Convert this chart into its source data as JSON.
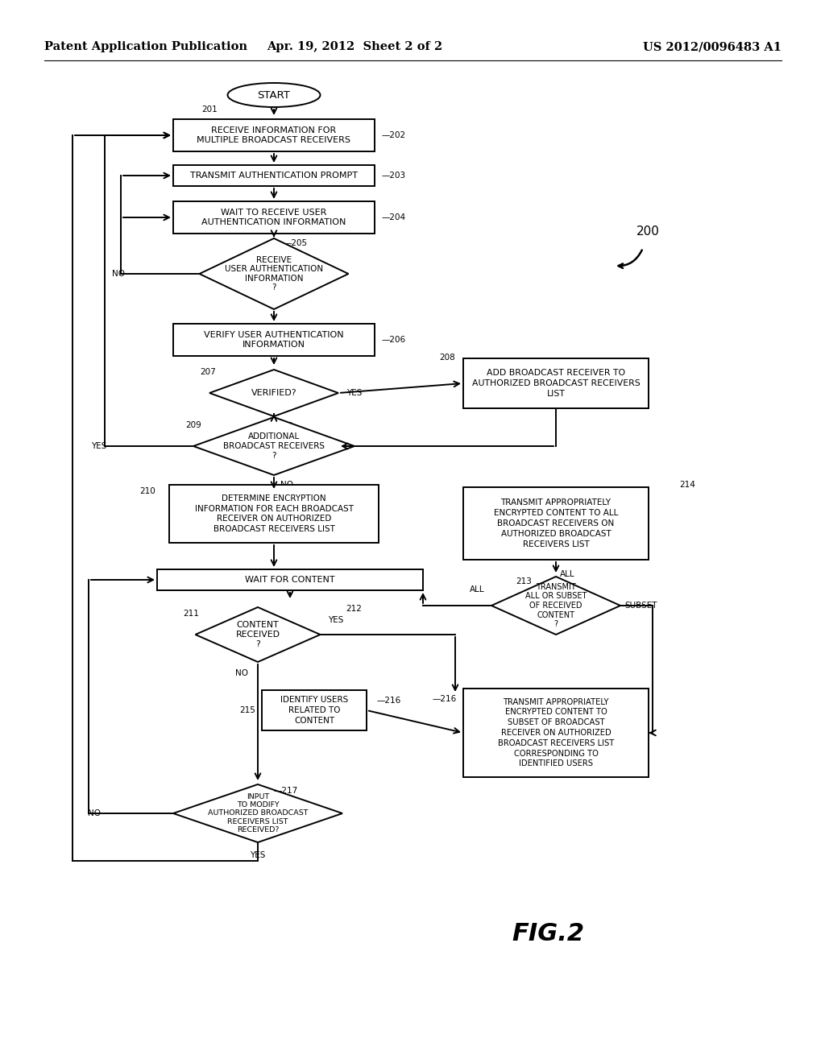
{
  "header_left": "Patent Application Publication",
  "header_center": "Apr. 19, 2012  Sheet 2 of 2",
  "header_right": "US 2012/0096483 A1",
  "fig_label": "FIG.2",
  "bg": "#ffffff",
  "lc": "#000000"
}
